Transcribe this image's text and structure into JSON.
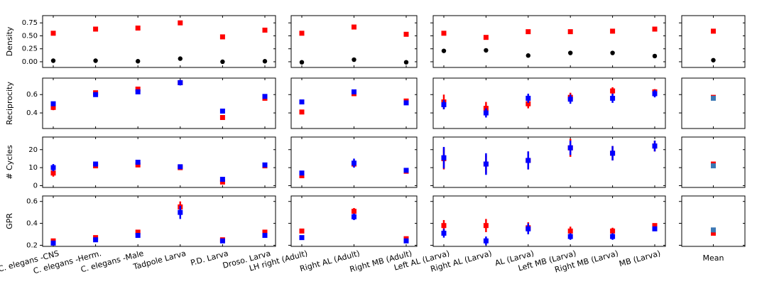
{
  "chart_data": [
    {
      "type": "dot",
      "ylabel": "Density",
      "ylim": [
        -0.11,
        0.89
      ],
      "yticks": [
        {
          "value": 0,
          "label": "0.00"
        },
        {
          "value": 0.25,
          "label": "0.25"
        },
        {
          "value": 0.5,
          "label": "0.50"
        },
        {
          "value": 0.75,
          "label": "0.75"
        }
      ],
      "series": [
        {
          "color": "#ff0000",
          "marker": "square",
          "values": [
            0.55,
            0.63,
            0.65,
            0.75,
            0.48,
            0.61
          ]
        },
        {
          "color": "#000000",
          "marker": "circle",
          "values": [
            0.02,
            0.02,
            0.01,
            0.06,
            0.0,
            0.01
          ]
        }
      ]
    },
    {
      "type": "dot",
      "series": [
        {
          "color": "#ff0000",
          "marker": "square",
          "values": [
            0.55,
            0.67,
            0.53
          ]
        },
        {
          "color": "#000000",
          "marker": "circle",
          "values": [
            -0.01,
            0.04,
            -0.01
          ]
        }
      ]
    },
    {
      "type": "dot",
      "series": [
        {
          "color": "#ff0000",
          "marker": "square",
          "values": [
            0.55,
            0.47,
            0.58,
            0.58,
            0.59,
            0.63
          ],
          "errors": [
            0.03,
            0.03,
            null,
            null,
            null,
            null
          ]
        },
        {
          "color": "#000000",
          "marker": "circle",
          "values": [
            0.21,
            0.22,
            0.12,
            0.17,
            0.17,
            0.11
          ]
        }
      ]
    },
    {
      "type": "dot",
      "series": [
        {
          "color": "#ff0000",
          "marker": "square",
          "values": [
            0.59
          ]
        },
        {
          "color": "#000000",
          "marker": "circle",
          "values": [
            0.03
          ]
        }
      ]
    },
    {
      "type": "dot",
      "ylabel": "Reciprocity",
      "ylim": [
        0.23,
        0.78
      ],
      "yticks": [
        0.4,
        0.6
      ],
      "series": [
        {
          "color": "#ff0000",
          "marker": "square",
          "values": [
            0.46,
            0.62,
            0.66,
            0.73,
            0.35,
            0.56
          ],
          "errors": [
            0.03,
            null,
            0.02,
            null,
            0.02,
            null
          ]
        },
        {
          "color": "#0000ff",
          "marker": "square",
          "values": [
            0.5,
            0.6,
            0.63,
            0.73,
            0.42,
            0.58
          ],
          "errors": [
            null,
            null,
            null,
            0.03,
            null,
            null
          ]
        }
      ]
    },
    {
      "type": "dot",
      "series": [
        {
          "color": "#ff0000",
          "marker": "square",
          "values": [
            0.41,
            0.61,
            0.53
          ]
        },
        {
          "color": "#0000ff",
          "marker": "square",
          "values": [
            0.52,
            0.63,
            0.51
          ],
          "errors": [
            null,
            0.02,
            null
          ]
        }
      ]
    },
    {
      "type": "dot",
      "series": [
        {
          "color": "#ff0000",
          "marker": "square",
          "values": [
            0.52,
            0.45,
            0.5,
            0.57,
            0.64,
            0.63
          ],
          "errors": [
            0.08,
            0.07,
            0.05,
            0.05,
            0.04,
            0.03
          ]
        },
        {
          "color": "#0000ff",
          "marker": "square",
          "values": [
            0.49,
            0.4,
            0.56,
            0.55,
            0.56,
            0.61
          ],
          "errors": [
            0.05,
            0.05,
            0.05,
            0.05,
            0.05,
            0.04
          ]
        }
      ]
    },
    {
      "type": "dot",
      "series": [
        {
          "color": "#ff0000",
          "marker": "square",
          "values": [
            0.57
          ]
        },
        {
          "color": "#3c78b4",
          "marker": "square",
          "values": [
            0.56
          ]
        }
      ]
    },
    {
      "type": "dot",
      "ylabel": "# Cycles",
      "ylim": [
        -1,
        27
      ],
      "yticks": [
        0,
        10,
        20
      ],
      "series": [
        {
          "color": "#ff0000",
          "marker": "square",
          "values": [
            7,
            11,
            11.5,
            10,
            2,
            11
          ],
          "errors": [
            2,
            null,
            null,
            null,
            1,
            null
          ]
        },
        {
          "color": "#0000ff",
          "marker": "square",
          "values": [
            10,
            12,
            13,
            10.5,
            3.5,
            11.5
          ],
          "errors": [
            2,
            null,
            null,
            null,
            null,
            null
          ]
        }
      ]
    },
    {
      "type": "dot",
      "series": [
        {
          "color": "#ff0000",
          "marker": "square",
          "values": [
            5.5,
            12,
            8
          ]
        },
        {
          "color": "#0000ff",
          "marker": "square",
          "values": [
            7,
            12.5,
            8.5
          ],
          "errors": [
            null,
            2.5,
            null
          ]
        }
      ]
    },
    {
      "type": "dot",
      "series": [
        {
          "color": "#ff0000",
          "marker": "square",
          "values": [
            15,
            12,
            14,
            21,
            18,
            22
          ],
          "errors": [
            6,
            5,
            5,
            5,
            4,
            3
          ]
        },
        {
          "color": "#0000ff",
          "marker": "square",
          "values": [
            15.5,
            12,
            14,
            21,
            18,
            22
          ],
          "errors": [
            6,
            6,
            5,
            4,
            4,
            3
          ]
        }
      ]
    },
    {
      "type": "dot",
      "series": [
        {
          "color": "#ff0000",
          "marker": "square",
          "values": [
            12
          ]
        },
        {
          "color": "#3c78b4",
          "marker": "square",
          "values": [
            11
          ]
        }
      ]
    },
    {
      "type": "dot",
      "ylabel": "GPR",
      "ylim": [
        0.19,
        0.65
      ],
      "yticks": [
        0.2,
        0.4,
        0.6
      ],
      "categories": [
        "C. elegans -CNS",
        "C. elegans -Herm.",
        "C. elegans -Male",
        "Tadpole Larva",
        "P.D. Larva",
        "Droso. Larva"
      ],
      "series": [
        {
          "color": "#ff0000",
          "marker": "square",
          "values": [
            0.24,
            0.27,
            0.32,
            0.55,
            0.25,
            0.32
          ],
          "errors": [
            null,
            null,
            0.02,
            0.05,
            null,
            null
          ]
        },
        {
          "color": "#0000ff",
          "marker": "square",
          "values": [
            0.22,
            0.25,
            0.29,
            0.5,
            0.24,
            0.29
          ],
          "errors": [
            null,
            null,
            null,
            0.06,
            null,
            null
          ]
        }
      ]
    },
    {
      "type": "dot",
      "categories": [
        "LH right (Adult)",
        "Right AL (Adult)",
        "Right MB (Adult)"
      ],
      "series": [
        {
          "color": "#ff0000",
          "marker": "square",
          "values": [
            0.33,
            0.51,
            0.26
          ],
          "errors": [
            null,
            0.03,
            null
          ]
        },
        {
          "color": "#0000ff",
          "marker": "square",
          "values": [
            0.27,
            0.46,
            0.24
          ],
          "errors": [
            null,
            0.03,
            null
          ]
        }
      ]
    },
    {
      "type": "dot",
      "categories": [
        "Left AL (Larva)",
        "Right AL (Larva)",
        "AL (Larva)",
        "Left MB (Larva)",
        "Right MB (Larva)",
        "MB (Larva)"
      ],
      "series": [
        {
          "color": "#ff0000",
          "marker": "square",
          "values": [
            0.38,
            0.38,
            0.36,
            0.33,
            0.33,
            0.38
          ],
          "errors": [
            0.05,
            0.06,
            0.05,
            0.04,
            0.03,
            0.02
          ]
        },
        {
          "color": "#0000ff",
          "marker": "square",
          "values": [
            0.31,
            0.24,
            0.35,
            0.28,
            0.28,
            0.35
          ],
          "errors": [
            0.04,
            0.04,
            0.05,
            0.03,
            0.03,
            0.02
          ]
        }
      ]
    },
    {
      "type": "dot",
      "categories": [
        "Mean"
      ],
      "series": [
        {
          "color": "#ff0000",
          "marker": "square",
          "values": [
            0.31
          ]
        },
        {
          "color": "#3c78b4",
          "marker": "square",
          "values": [
            0.34
          ]
        }
      ]
    }
  ]
}
